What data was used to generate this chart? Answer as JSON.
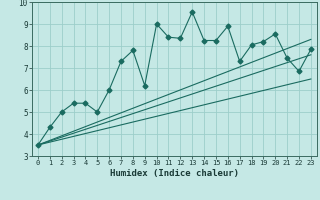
{
  "xlabel": "Humidex (Indice chaleur)",
  "bg_color": "#c5e8e5",
  "grid_color": "#9dceca",
  "line_color": "#1a6b60",
  "xlim": [
    -0.5,
    23.5
  ],
  "ylim": [
    3,
    10
  ],
  "xticks": [
    0,
    1,
    2,
    3,
    4,
    5,
    6,
    7,
    8,
    9,
    10,
    11,
    12,
    13,
    14,
    15,
    16,
    17,
    18,
    19,
    20,
    21,
    22,
    23
  ],
  "yticks": [
    3,
    4,
    5,
    6,
    7,
    8,
    9,
    10
  ],
  "main_x": [
    0,
    1,
    2,
    3,
    4,
    5,
    6,
    7,
    8,
    9,
    10,
    11,
    12,
    13,
    14,
    15,
    16,
    17,
    18,
    19,
    20,
    21,
    22,
    23
  ],
  "main_y": [
    3.5,
    4.3,
    5.0,
    5.4,
    5.4,
    5.0,
    6.0,
    7.3,
    7.8,
    6.2,
    9.0,
    8.4,
    8.35,
    9.55,
    8.25,
    8.25,
    8.9,
    7.3,
    8.05,
    8.2,
    8.55,
    7.45,
    6.85,
    7.85
  ],
  "trend_lines": [
    {
      "x": [
        0,
        23
      ],
      "y": [
        3.5,
        6.5
      ]
    },
    {
      "x": [
        0,
        23
      ],
      "y": [
        3.5,
        7.6
      ]
    },
    {
      "x": [
        0,
        23
      ],
      "y": [
        3.5,
        8.3
      ]
    }
  ]
}
